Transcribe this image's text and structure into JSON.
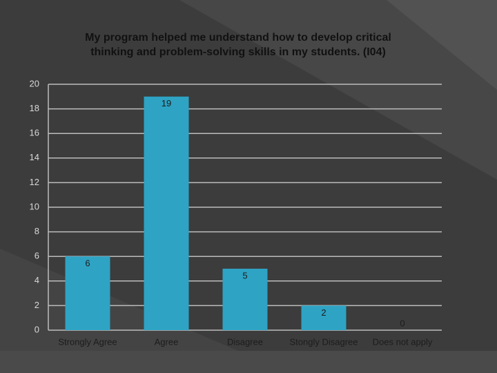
{
  "chart_data": {
    "type": "bar",
    "title": "My program helped me understand how to develop critical thinking and problem-solving skills in my students. (I04)",
    "categories": [
      "Strongly Agree",
      "Agree",
      "Disagree",
      "Stongly Disagree",
      "Does not apply"
    ],
    "values": [
      6,
      19,
      5,
      2,
      0
    ],
    "color": "#2ea3c4",
    "ylim": [
      0,
      20
    ],
    "yticks": [
      0,
      2,
      4,
      6,
      8,
      10,
      12,
      14,
      16,
      18,
      20
    ],
    "grid": true
  }
}
